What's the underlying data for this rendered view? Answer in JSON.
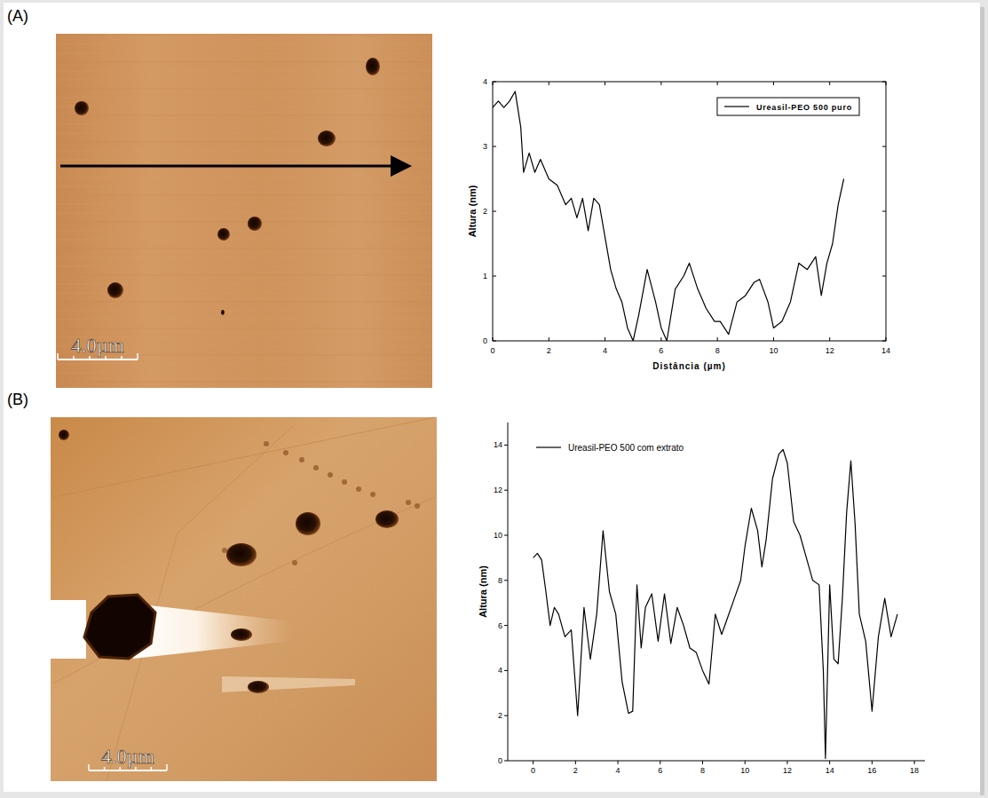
{
  "chart_data": [
    {
      "type": "line",
      "panel_label": "(A)",
      "annotations": [
        "4.0µm"
      ],
      "xlabel": "Distância (µm)",
      "ylabel": "Altura (nm)",
      "x": [
        0,
        0.2,
        0.4,
        0.6,
        0.8,
        1.0,
        1.1,
        1.3,
        1.5,
        1.7,
        2.0,
        2.3,
        2.6,
        2.8,
        3.0,
        3.2,
        3.4,
        3.6,
        3.8,
        4.0,
        4.2,
        4.4,
        4.6,
        4.8,
        5.0,
        5.2,
        5.5,
        5.8,
        6.0,
        6.2,
        6.5,
        6.8,
        7.0,
        7.3,
        7.6,
        7.9,
        8.1,
        8.4,
        8.7,
        9.0,
        9.3,
        9.5,
        9.8,
        10.0,
        10.3,
        10.6,
        10.9,
        11.2,
        11.5,
        11.7,
        11.9,
        12.1,
        12.3,
        12.5
      ],
      "series": [
        {
          "name": "Ureasil-PEO 500 puro",
          "color": "#000000",
          "values": [
            3.6,
            3.7,
            3.6,
            3.7,
            3.85,
            3.3,
            2.6,
            2.9,
            2.6,
            2.8,
            2.5,
            2.4,
            2.1,
            2.2,
            1.9,
            2.2,
            1.7,
            2.2,
            2.1,
            1.6,
            1.1,
            0.8,
            0.6,
            0.2,
            0.0,
            0.4,
            1.1,
            0.6,
            0.2,
            0.0,
            0.8,
            1.0,
            1.2,
            0.8,
            0.5,
            0.3,
            0.3,
            0.1,
            0.6,
            0.7,
            0.9,
            0.95,
            0.6,
            0.2,
            0.3,
            0.6,
            1.2,
            1.1,
            1.3,
            0.7,
            1.2,
            1.5,
            2.1,
            2.5
          ]
        }
      ],
      "xlim": [
        0,
        14
      ],
      "xticks": [
        0,
        2,
        4,
        6,
        8,
        10,
        12,
        14
      ],
      "ylim": [
        0,
        4
      ],
      "yticks": [
        0,
        1,
        2,
        3,
        4
      ],
      "grid": false,
      "legend": "upper-right"
    },
    {
      "type": "line",
      "panel_label": "(B)",
      "annotations": [
        "4.0µm"
      ],
      "ylabel": "Altura (nm)",
      "x": [
        0,
        0.2,
        0.4,
        0.6,
        0.8,
        1.0,
        1.2,
        1.5,
        1.8,
        2.1,
        2.4,
        2.7,
        3.0,
        3.3,
        3.6,
        3.9,
        4.2,
        4.5,
        4.7,
        4.9,
        5.1,
        5.3,
        5.6,
        5.9,
        6.2,
        6.5,
        6.8,
        7.1,
        7.4,
        7.7,
        8.0,
        8.3,
        8.6,
        8.9,
        9.2,
        9.5,
        9.8,
        10.0,
        10.3,
        10.6,
        10.8,
        11.0,
        11.3,
        11.6,
        11.8,
        12.0,
        12.3,
        12.6,
        12.9,
        13.2,
        13.5,
        13.7,
        13.8,
        14.0,
        14.2,
        14.4,
        14.6,
        14.8,
        15.0,
        15.2,
        15.4,
        15.7,
        16.0,
        16.3,
        16.6,
        16.9,
        17.2
      ],
      "series": [
        {
          "name": "Ureasil-PEO 500 com extrato",
          "color": "#000000",
          "values": [
            9.0,
            9.2,
            8.9,
            7.5,
            6.0,
            6.8,
            6.5,
            5.5,
            5.8,
            2.0,
            6.8,
            4.5,
            6.5,
            10.2,
            7.5,
            6.5,
            3.5,
            2.1,
            2.2,
            7.8,
            5.0,
            6.8,
            7.4,
            5.3,
            7.4,
            5.2,
            6.8,
            6.0,
            5.0,
            4.8,
            4.0,
            3.4,
            6.5,
            5.6,
            6.4,
            7.2,
            8.0,
            9.5,
            11.2,
            10.2,
            8.6,
            9.8,
            12.5,
            13.6,
            13.8,
            13.2,
            10.6,
            10.0,
            9.0,
            8.0,
            7.8,
            4.0,
            0.1,
            7.8,
            4.5,
            4.3,
            7.2,
            11.0,
            13.3,
            10.5,
            6.5,
            5.3,
            2.2,
            5.5,
            7.2,
            5.5,
            6.5
          ]
        }
      ],
      "xlim": [
        -1.2,
        18.5
      ],
      "xticks": [
        0,
        2,
        4,
        6,
        8,
        10,
        12,
        14,
        16,
        18
      ],
      "ylim": [
        0,
        15
      ],
      "yticks": [
        0,
        2,
        4,
        6,
        8,
        10,
        12,
        14
      ],
      "grid": false,
      "legend": "upper-left"
    }
  ]
}
